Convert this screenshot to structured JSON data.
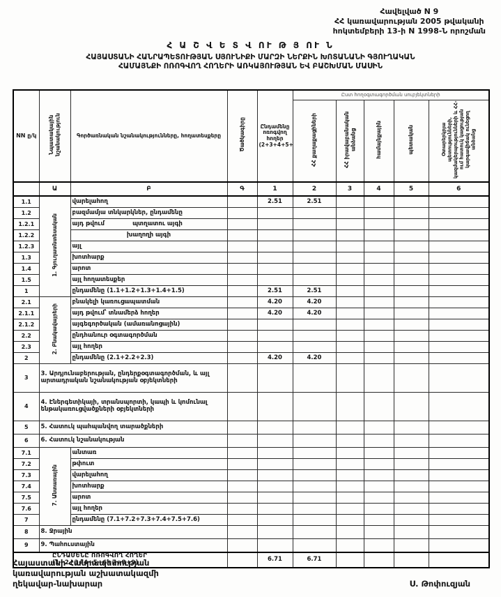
{
  "header": {
    "annex_line1": "Հավելված  N  9",
    "annex_line2": "ՀՀ կառավարության 2005 թվականի",
    "annex_line3": "հոկտեմբերի 13-ի N 1998-Ն որոշման",
    "title": "Հ Ա Շ Վ Ե Տ Վ ՈՒ Թ Յ ՈՒ Ն",
    "subtitle_line1": "ՀԱՅԱՍՏԱՆԻ ՀԱՆՐԱՊԵՏՈՒԹՅԱՆ ՍՅՈՒՆԻՔԻ ՄԱՐԶԻ ՆԵՐՔԻՆ ԽՈՏԱՆԱՆԻ ԳՅՈՒՂԱԿԱՆ",
    "subtitle_line2": "ՀԱՄԱՅՆՔԻ ՈՌՈԳՎՈՂ ՀՈՂԵՐԻ ԱՌԿԱՅՈՒԹՅԱՆ ԵՎ ԲԱՇԽՄԱՆ ՄԱՍԻՆ"
  },
  "table": {
    "headers": {
      "nn": "NN ը/կ",
      "purpose": "Նպատակային նշանակություն",
      "functional": "Գործառնական նշանակությունները, հողատեսքերը",
      "code": "Ծածկագիրը",
      "total_irrigated": "Ընդամենը ոռոգվող հողեր (2+3+4+5+6)",
      "by_subjects": "Ըստ հողօգտագործման սուբյեկտների",
      "col2": "ՀՀ քաղաքացիների",
      "col3": "ՀՀ իրավաբանական անձանց",
      "col4": "համայնքային",
      "col5": "պետական",
      "col6": "Օտարերկրյա պետությունների, կազմակերպությունների և ՀՀ-ում հատուկ կացության կարգավիճակ ունեցող անձանց"
    },
    "letter_row": [
      "",
      "Ա",
      "Բ",
      "Գ",
      "1",
      "2",
      "3",
      "4",
      "5",
      "6"
    ],
    "rows": [
      {
        "num": "1.1",
        "group_start": {
          "label": "1. Գյուղատնտեսական",
          "span": 9
        },
        "label": "վարելահող",
        "v": [
          "2.51",
          "2.51",
          "",
          "",
          "",
          ""
        ]
      },
      {
        "num": "1.2",
        "label": "բազմամյա տնկարկներ, ընդամենը",
        "v": [
          "",
          "",
          "",
          "",
          "",
          ""
        ]
      },
      {
        "num": "1.2.1",
        "parts": [
          "այդ թվում",
          "պտղատու այգի"
        ],
        "v": [
          "",
          "",
          "",
          "",
          "",
          ""
        ]
      },
      {
        "num": "1.2.2",
        "label": "խաղողի այգի",
        "align": "center",
        "v": [
          "",
          "",
          "",
          "",
          "",
          ""
        ]
      },
      {
        "num": "1.2.3",
        "label": "այլ",
        "v": [
          "",
          "",
          "",
          "",
          "",
          ""
        ]
      },
      {
        "num": "1.3",
        "label": "խոտհարք",
        "v": [
          "",
          "",
          "",
          "",
          "",
          ""
        ]
      },
      {
        "num": "1.4",
        "label": "արոտ",
        "v": [
          "",
          "",
          "",
          "",
          "",
          ""
        ]
      },
      {
        "num": "1.5",
        "label": "այլ հողատեսքեր",
        "v": [
          "",
          "",
          "",
          "",
          "",
          ""
        ]
      },
      {
        "num": "1",
        "label": "ընդամենը (1.1+1.2+1.3+1.4+1.5)",
        "v": [
          "2.51",
          "2.51",
          "",
          "",
          "",
          ""
        ]
      },
      {
        "num": "2.1",
        "group_start": {
          "label": "2. Բնակավայրերի",
          "span": 6
        },
        "label": "բնակելի կառուցապատման",
        "v": [
          "4.20",
          "4.20",
          "",
          "",
          "",
          ""
        ]
      },
      {
        "num": "2.1.1",
        "label": "այդ թվում՝ տնամերձ հողեր",
        "v": [
          "4.20",
          "4.20",
          "",
          "",
          "",
          ""
        ]
      },
      {
        "num": "2.1.2",
        "label": "այգեգործական (ամառանոցային)",
        "v": [
          "",
          "",
          "",
          "",
          "",
          ""
        ]
      },
      {
        "num": "2.2",
        "label": "ընդհանուր օգտագործման",
        "v": [
          "",
          "",
          "",
          "",
          "",
          ""
        ]
      },
      {
        "num": "2.3",
        "label": "այլ հողեր",
        "v": [
          "",
          "",
          "",
          "",
          "",
          ""
        ]
      },
      {
        "num": "2",
        "label": "ընդամենը (2.1+2.2+2.3)",
        "v": [
          "4.20",
          "4.20",
          "",
          "",
          "",
          ""
        ]
      },
      {
        "num": "3",
        "wide": true,
        "tall": true,
        "label": "3. Արդյունաբերության, ընդերքօգտագործման, և այլ արտադրական նշանակության օբյեկտների",
        "v": [
          "",
          "",
          "",
          "",
          "",
          ""
        ]
      },
      {
        "num": "4",
        "wide": true,
        "tall": true,
        "label": "4. Էներգետիկայի, տրանսպորտի, կապի և կոմունալ ենթակառուցվածքների օբյեկտների",
        "v": [
          "",
          "",
          "",
          "",
          "",
          ""
        ]
      },
      {
        "num": "5",
        "wide": true,
        "semi": true,
        "label": "5. Հատուկ պահպանվող տարածքների",
        "v": [
          "",
          "",
          "",
          "",
          "",
          ""
        ]
      },
      {
        "num": "6",
        "wide": true,
        "semi": true,
        "label": "6. Հատուկ նշանակության",
        "v": [
          "",
          "",
          "",
          "",
          "",
          ""
        ]
      },
      {
        "num": "7.1",
        "group_start": {
          "label": "7. Անտառային",
          "span": 7
        },
        "label": "անտառ",
        "v": [
          "",
          "",
          "",
          "",
          "",
          ""
        ]
      },
      {
        "num": "7.2",
        "label": "թփուտ",
        "v": [
          "",
          "",
          "",
          "",
          "",
          ""
        ]
      },
      {
        "num": "7.3",
        "label": "վարելահող",
        "v": [
          "",
          "",
          "",
          "",
          "",
          ""
        ]
      },
      {
        "num": "7.4",
        "label": "խոտհարք",
        "v": [
          "",
          "",
          "",
          "",
          "",
          ""
        ]
      },
      {
        "num": "7.5",
        "label": "արոտ",
        "v": [
          "",
          "",
          "",
          "",
          "",
          ""
        ]
      },
      {
        "num": "7.6",
        "label": "այլ հողեր",
        "v": [
          "",
          "",
          "",
          "",
          "",
          ""
        ]
      },
      {
        "num": "7",
        "label": "ընդամենը (7.1+7.2+7.3+7.4+7.5+7.6)",
        "v": [
          "",
          "",
          "",
          "",
          "",
          ""
        ]
      },
      {
        "num": "8",
        "wide": true,
        "semi": true,
        "label": "8. Ջրային",
        "v": [
          "",
          "",
          "",
          "",
          "",
          ""
        ]
      },
      {
        "num": "9",
        "wide": true,
        "semi": true,
        "label": "9. Պահուստային",
        "v": [
          "",
          "",
          "",
          "",
          "",
          ""
        ]
      },
      {
        "total": true,
        "label": "ԸՆԴԱՄԵՆԸ ՈՌՈԳՎՈՂ ՀՈՂԵՐ (1+2+3+4+5+6+7+8+9)",
        "v": [
          "6.71",
          "6.71",
          "",
          "",
          "",
          ""
        ]
      }
    ]
  },
  "footer": {
    "line1": "Հայաստանի Հանրապետության",
    "line2": "կառավարության աշխատակազմի",
    "line3": "ղեկավար-նախարար",
    "signature": "Ս. Թոփուզյան"
  }
}
